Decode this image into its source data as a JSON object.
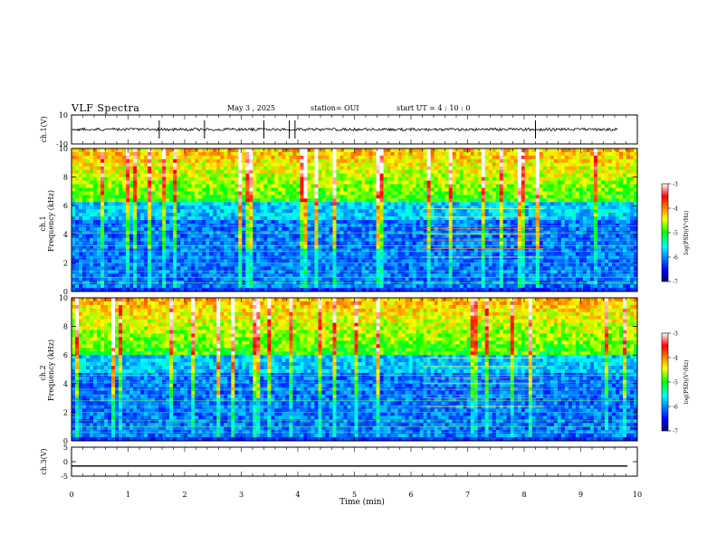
{
  "header": {
    "title": "VLF Spectra",
    "date": "May 3 , 2025",
    "station": "station= OUI",
    "start": "start UT = 4 : 10 : 0"
  },
  "chart_data": [
    {
      "type": "line",
      "ylabel": "ch.1(V)",
      "ylim": [
        -10,
        10
      ],
      "yticks": [
        "10",
        "-10"
      ],
      "xlim": [
        0,
        10
      ],
      "series": [
        {
          "values_note": "",
          "level": 0,
          "spikes_at_min": [
            1.55,
            2.35,
            3.4,
            3.85,
            3.95,
            8.2
          ],
          "noise_amplitude": 1.0
        }
      ]
    },
    {
      "type": "heatmap",
      "ylabel": "ch.1 Frequency (kHz)",
      "ylim": [
        0,
        10
      ],
      "yticks": [
        "0",
        "2",
        "4",
        "6",
        "8",
        "10"
      ],
      "xlim": [
        0,
        10
      ],
      "colorbar": {
        "label": "log(PSD)(V²/Hz)",
        "range": [
          -7,
          -3
        ],
        "ticks": [
          "-3",
          "-4",
          "-5",
          "-6",
          "-7"
        ]
      },
      "band_kHz": [
        [
          0,
          5,
          "low"
        ],
        [
          5,
          6.2,
          "mid"
        ],
        [
          6.2,
          10,
          "high"
        ]
      ],
      "tone_window_min": [
        6.2,
        8.35
      ]
    },
    {
      "type": "heatmap",
      "ylabel": "ch.2 Frequency (kHz)",
      "ylim": [
        0,
        10
      ],
      "yticks": [
        "0",
        "2",
        "4",
        "6",
        "8",
        "10"
      ],
      "xlim": [
        0,
        10
      ],
      "colorbar": {
        "label": "log(PSD)(V²/Hz)",
        "range": [
          -7,
          -3
        ],
        "ticks": [
          "-3",
          "-4",
          "-5",
          "-6",
          "-7"
        ]
      },
      "band_kHz": [
        [
          0,
          4.8,
          "low"
        ],
        [
          4.8,
          6,
          "mid"
        ],
        [
          6,
          10,
          "high"
        ]
      ],
      "tone_window_min": [
        6.2,
        8.35
      ]
    },
    {
      "type": "line",
      "ylabel": "ch.3(V)",
      "ylim": [
        -5,
        5
      ],
      "yticks": [
        "5",
        "0",
        "-5"
      ],
      "xlim": [
        0,
        10
      ],
      "series": [
        {
          "level": -1.5
        }
      ]
    }
  ],
  "xaxis": {
    "label": "Time (min)",
    "ticks": [
      "0",
      "1",
      "2",
      "3",
      "4",
      "5",
      "6",
      "7",
      "8",
      "9",
      "10"
    ]
  }
}
